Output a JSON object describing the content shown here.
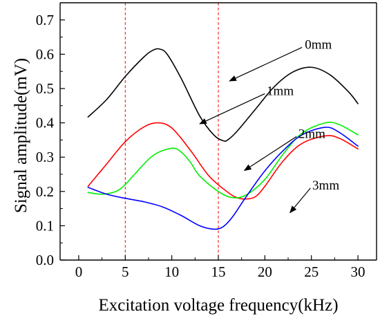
{
  "chart_data": {
    "type": "line",
    "title": "",
    "xlabel": "Excitation voltage frequency(kHz)",
    "ylabel": "Signal amplitude(mV)",
    "xlim": [
      -2,
      32
    ],
    "ylim": [
      0.0,
      0.75
    ],
    "xticks": [
      0,
      5,
      10,
      15,
      20,
      25,
      30
    ],
    "xtick_labels": [
      "0",
      "5",
      "10",
      "15",
      "20",
      "25",
      "30"
    ],
    "yticks": [
      0.0,
      0.1,
      0.2,
      0.3,
      0.4,
      0.5,
      0.6,
      0.7
    ],
    "ytick_labels": [
      "0.0",
      "0.1",
      "0.2",
      "0.3",
      "0.4",
      "0.5",
      "0.6",
      "0.7"
    ],
    "grid": false,
    "legend": "none",
    "reference_lines": [
      {
        "x": 5,
        "color": "#ff0000",
        "style": "dashed"
      },
      {
        "x": 15,
        "color": "#ff0000",
        "style": "dashed"
      }
    ],
    "series": [
      {
        "name": "0mm",
        "color": "#000000",
        "x": [
          1,
          3,
          5,
          7,
          8,
          8.7,
          9.5,
          11,
          13,
          14.5,
          15.5,
          16,
          17,
          19,
          21,
          23,
          25,
          27,
          29,
          30
        ],
        "y": [
          0.417,
          0.468,
          0.535,
          0.592,
          0.612,
          0.615,
          0.6,
          0.53,
          0.42,
          0.365,
          0.348,
          0.35,
          0.375,
          0.44,
          0.505,
          0.548,
          0.562,
          0.54,
          0.49,
          0.456
        ]
      },
      {
        "name": "1mm",
        "color": "#ff0000",
        "x": [
          1,
          3,
          5,
          7,
          8.5,
          10,
          12,
          14,
          16,
          17,
          18,
          19,
          20,
          22,
          24,
          26.5,
          28,
          30
        ],
        "y": [
          0.215,
          0.28,
          0.345,
          0.388,
          0.4,
          0.385,
          0.32,
          0.245,
          0.198,
          0.182,
          0.178,
          0.185,
          0.215,
          0.29,
          0.34,
          0.362,
          0.355,
          0.324
        ]
      },
      {
        "name": "2mm",
        "color": "#00ee00",
        "x": [
          1,
          2.5,
          4,
          5,
          6,
          8,
          10,
          11,
          12,
          13,
          15,
          16.5,
          18,
          20,
          22,
          24,
          26.5,
          28,
          30
        ],
        "y": [
          0.197,
          0.192,
          0.2,
          0.22,
          0.25,
          0.305,
          0.326,
          0.315,
          0.285,
          0.245,
          0.2,
          0.182,
          0.19,
          0.235,
          0.31,
          0.37,
          0.4,
          0.395,
          0.365
        ]
      },
      {
        "name": "3mm",
        "color": "#0000ff",
        "x": [
          1,
          3,
          5,
          7,
          9,
          11,
          13,
          14.5,
          15.5,
          16.5,
          18,
          20,
          22,
          24,
          26.5,
          28,
          30
        ],
        "y": [
          0.212,
          0.192,
          0.18,
          0.17,
          0.155,
          0.13,
          0.1,
          0.09,
          0.097,
          0.125,
          0.185,
          0.26,
          0.32,
          0.365,
          0.387,
          0.372,
          0.332
        ]
      }
    ],
    "annotations": [
      {
        "text": "0mm",
        "label_x": 24.3,
        "label_y": 0.62,
        "tail_x": 24.0,
        "tail_y": 0.62,
        "arrow_x": 16.2,
        "arrow_y": 0.522
      },
      {
        "text": "1mm",
        "label_x": 20.2,
        "label_y": 0.485,
        "tail_x": 20.0,
        "tail_y": 0.485,
        "arrow_x": 13.0,
        "arrow_y": 0.397
      },
      {
        "text": "2mm",
        "label_x": 23.6,
        "label_y": 0.36,
        "tail_x": 23.4,
        "tail_y": 0.36,
        "arrow_x": 17.8,
        "arrow_y": 0.261
      },
      {
        "text": "3mm",
        "label_x": 25.1,
        "label_y": 0.21,
        "tail_x": 24.9,
        "tail_y": 0.21,
        "arrow_x": 22.7,
        "arrow_y": 0.138
      }
    ]
  }
}
